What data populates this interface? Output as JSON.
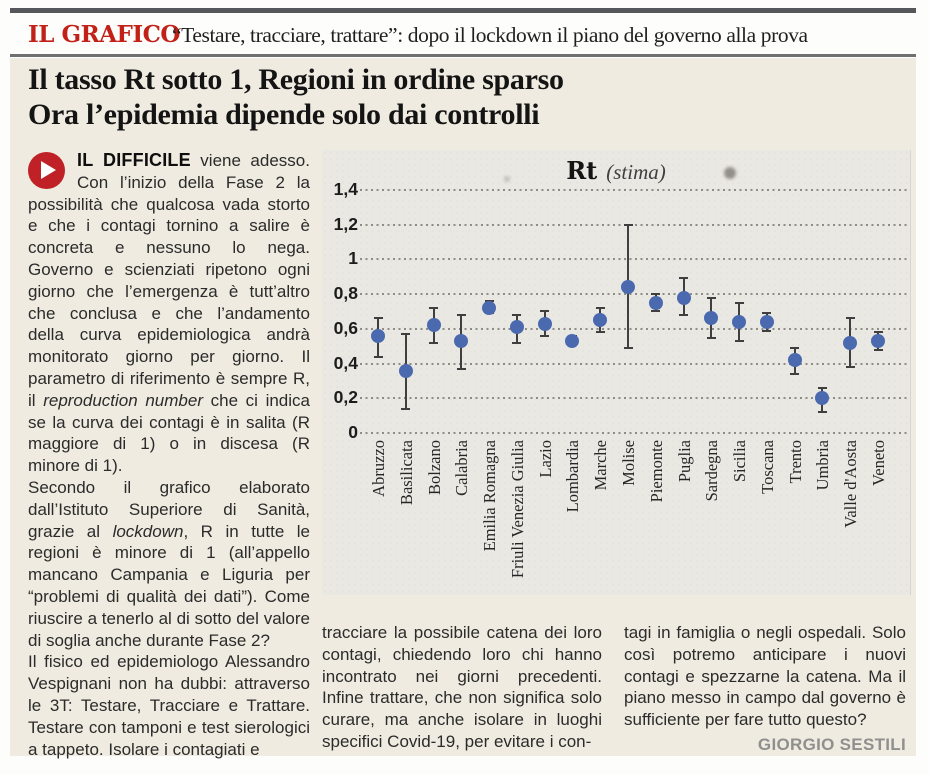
{
  "kicker": {
    "label": "IL GRAFICO",
    "quote": "“Testare, tracciare, trattare”: dopo il lockdown il piano del governo alla prova"
  },
  "headline": {
    "line1": "Il tasso Rt sotto 1, Regioni in ordine sparso",
    "line2": "Ora l’epidemia dipende solo dai controlli"
  },
  "article": {
    "left_column": [
      {
        "segments": [
          {
            "t": "IL DIFFICILE",
            "style": "lead"
          },
          {
            "t": "  viene adesso. Con l’inizio della Fase 2 la possibilità che qualcosa vada storto e che i contagi tornino a salire è concreta e nessuno lo nega. Governo e scienziati ripetono ogni giorno che l’emergenza è tutt’altro che conclusa e che l’andamento della curva epidemiologica andrà monitorato giorno per giorno. Il parametro di riferimento è sempre R, il ",
            "style": "normal"
          },
          {
            "t": "reproduction number",
            "style": "italic"
          },
          {
            "t": " che ci indica se la curva dei contagi è in salita (R maggiore di 1) o in discesa (R minore di 1).",
            "style": "normal"
          }
        ]
      },
      {
        "segments": [
          {
            "t": "Secondo il grafico elaborato dall’Istituto Superiore di Sanità, grazie al ",
            "style": "normal"
          },
          {
            "t": "lockdown",
            "style": "italic"
          },
          {
            "t": ", R in tutte le regioni è minore di 1 (all’appello mancano Campania e Liguria per “problemi di qualità dei dati”). Come riuscire a tenerlo al di sotto del valore di soglia anche durante Fase 2?",
            "style": "normal"
          }
        ]
      },
      {
        "segments": [
          {
            "t": "Il fisico ed epidemiologo Alessandro Vespignani non ha dubbi: attraverso le 3T: Testare, Tracciare e Trattare. Testare con tamponi e test sierologici a tappeto. Isolare i contagiati e",
            "style": "normal"
          }
        ]
      }
    ],
    "middle_column": [
      {
        "segments": [
          {
            "t": "tracciare la possibile catena dei loro contagi, chiedendo loro chi hanno incontrato nei giorni precedenti. Infine trattare, che non significa solo curare, ma anche isolare in luoghi specifici Covid-19, per evitare i con-",
            "style": "normal"
          }
        ]
      }
    ],
    "right_column": [
      {
        "segments": [
          {
            "t": "tagi in famiglia o negli ospedali. Solo così potremo anticipare i nuovi contagi e spezzarne la catena. Ma il piano messo in campo dal governo è sufficiente per fare tutto questo?",
            "style": "normal"
          }
        ]
      }
    ],
    "byline": "GIORGIO SESTILI"
  },
  "chart_data": {
    "type": "scatter",
    "title": "Rt",
    "subtitle": "(stima)",
    "grid": "dotted-horizontal",
    "legend": "none",
    "ylim": [
      0,
      1.52
    ],
    "yticks": [
      {
        "v": 1.4,
        "label": "1,4"
      },
      {
        "v": 1.2,
        "label": "1,2"
      },
      {
        "v": 1.0,
        "label": "1"
      },
      {
        "v": 0.8,
        "label": "0,8"
      },
      {
        "v": 0.6,
        "label": "0,6"
      },
      {
        "v": 0.4,
        "label": "0,4"
      },
      {
        "v": 0.2,
        "label": "0,2"
      },
      {
        "v": 0.0,
        "label": "0"
      }
    ],
    "point_color": "#4a69ae",
    "errorbar_color": "#3f3f3f",
    "categories": [
      "Abruzzo",
      "Basilicata",
      "Bolzano",
      "Calabria",
      "Emilia Romagna",
      "Friuli Venezia Giulia",
      "Lazio",
      "Lombardia",
      "Marche",
      "Molise",
      "Piemonte",
      "Puglia",
      "Sardegna",
      "Sicilia",
      "Toscana",
      "Trento",
      "Umbria",
      "Valle d'Aosta",
      "Veneto"
    ],
    "series": [
      {
        "name": "Rt stima per regione",
        "values": [
          0.56,
          0.36,
          0.62,
          0.53,
          0.72,
          0.61,
          0.63,
          0.53,
          0.65,
          0.84,
          0.75,
          0.78,
          0.66,
          0.64,
          0.64,
          0.42,
          0.2,
          0.52,
          0.53
        ],
        "err_low": [
          0.44,
          0.14,
          0.52,
          0.37,
          0.69,
          0.52,
          0.56,
          0.51,
          0.58,
          0.49,
          0.7,
          0.68,
          0.55,
          0.53,
          0.59,
          0.34,
          0.12,
          0.38,
          0.48
        ],
        "err_high": [
          0.66,
          0.57,
          0.72,
          0.68,
          0.76,
          0.68,
          0.7,
          0.56,
          0.72,
          1.2,
          0.8,
          0.89,
          0.78,
          0.75,
          0.69,
          0.49,
          0.26,
          0.66,
          0.58
        ]
      }
    ]
  }
}
